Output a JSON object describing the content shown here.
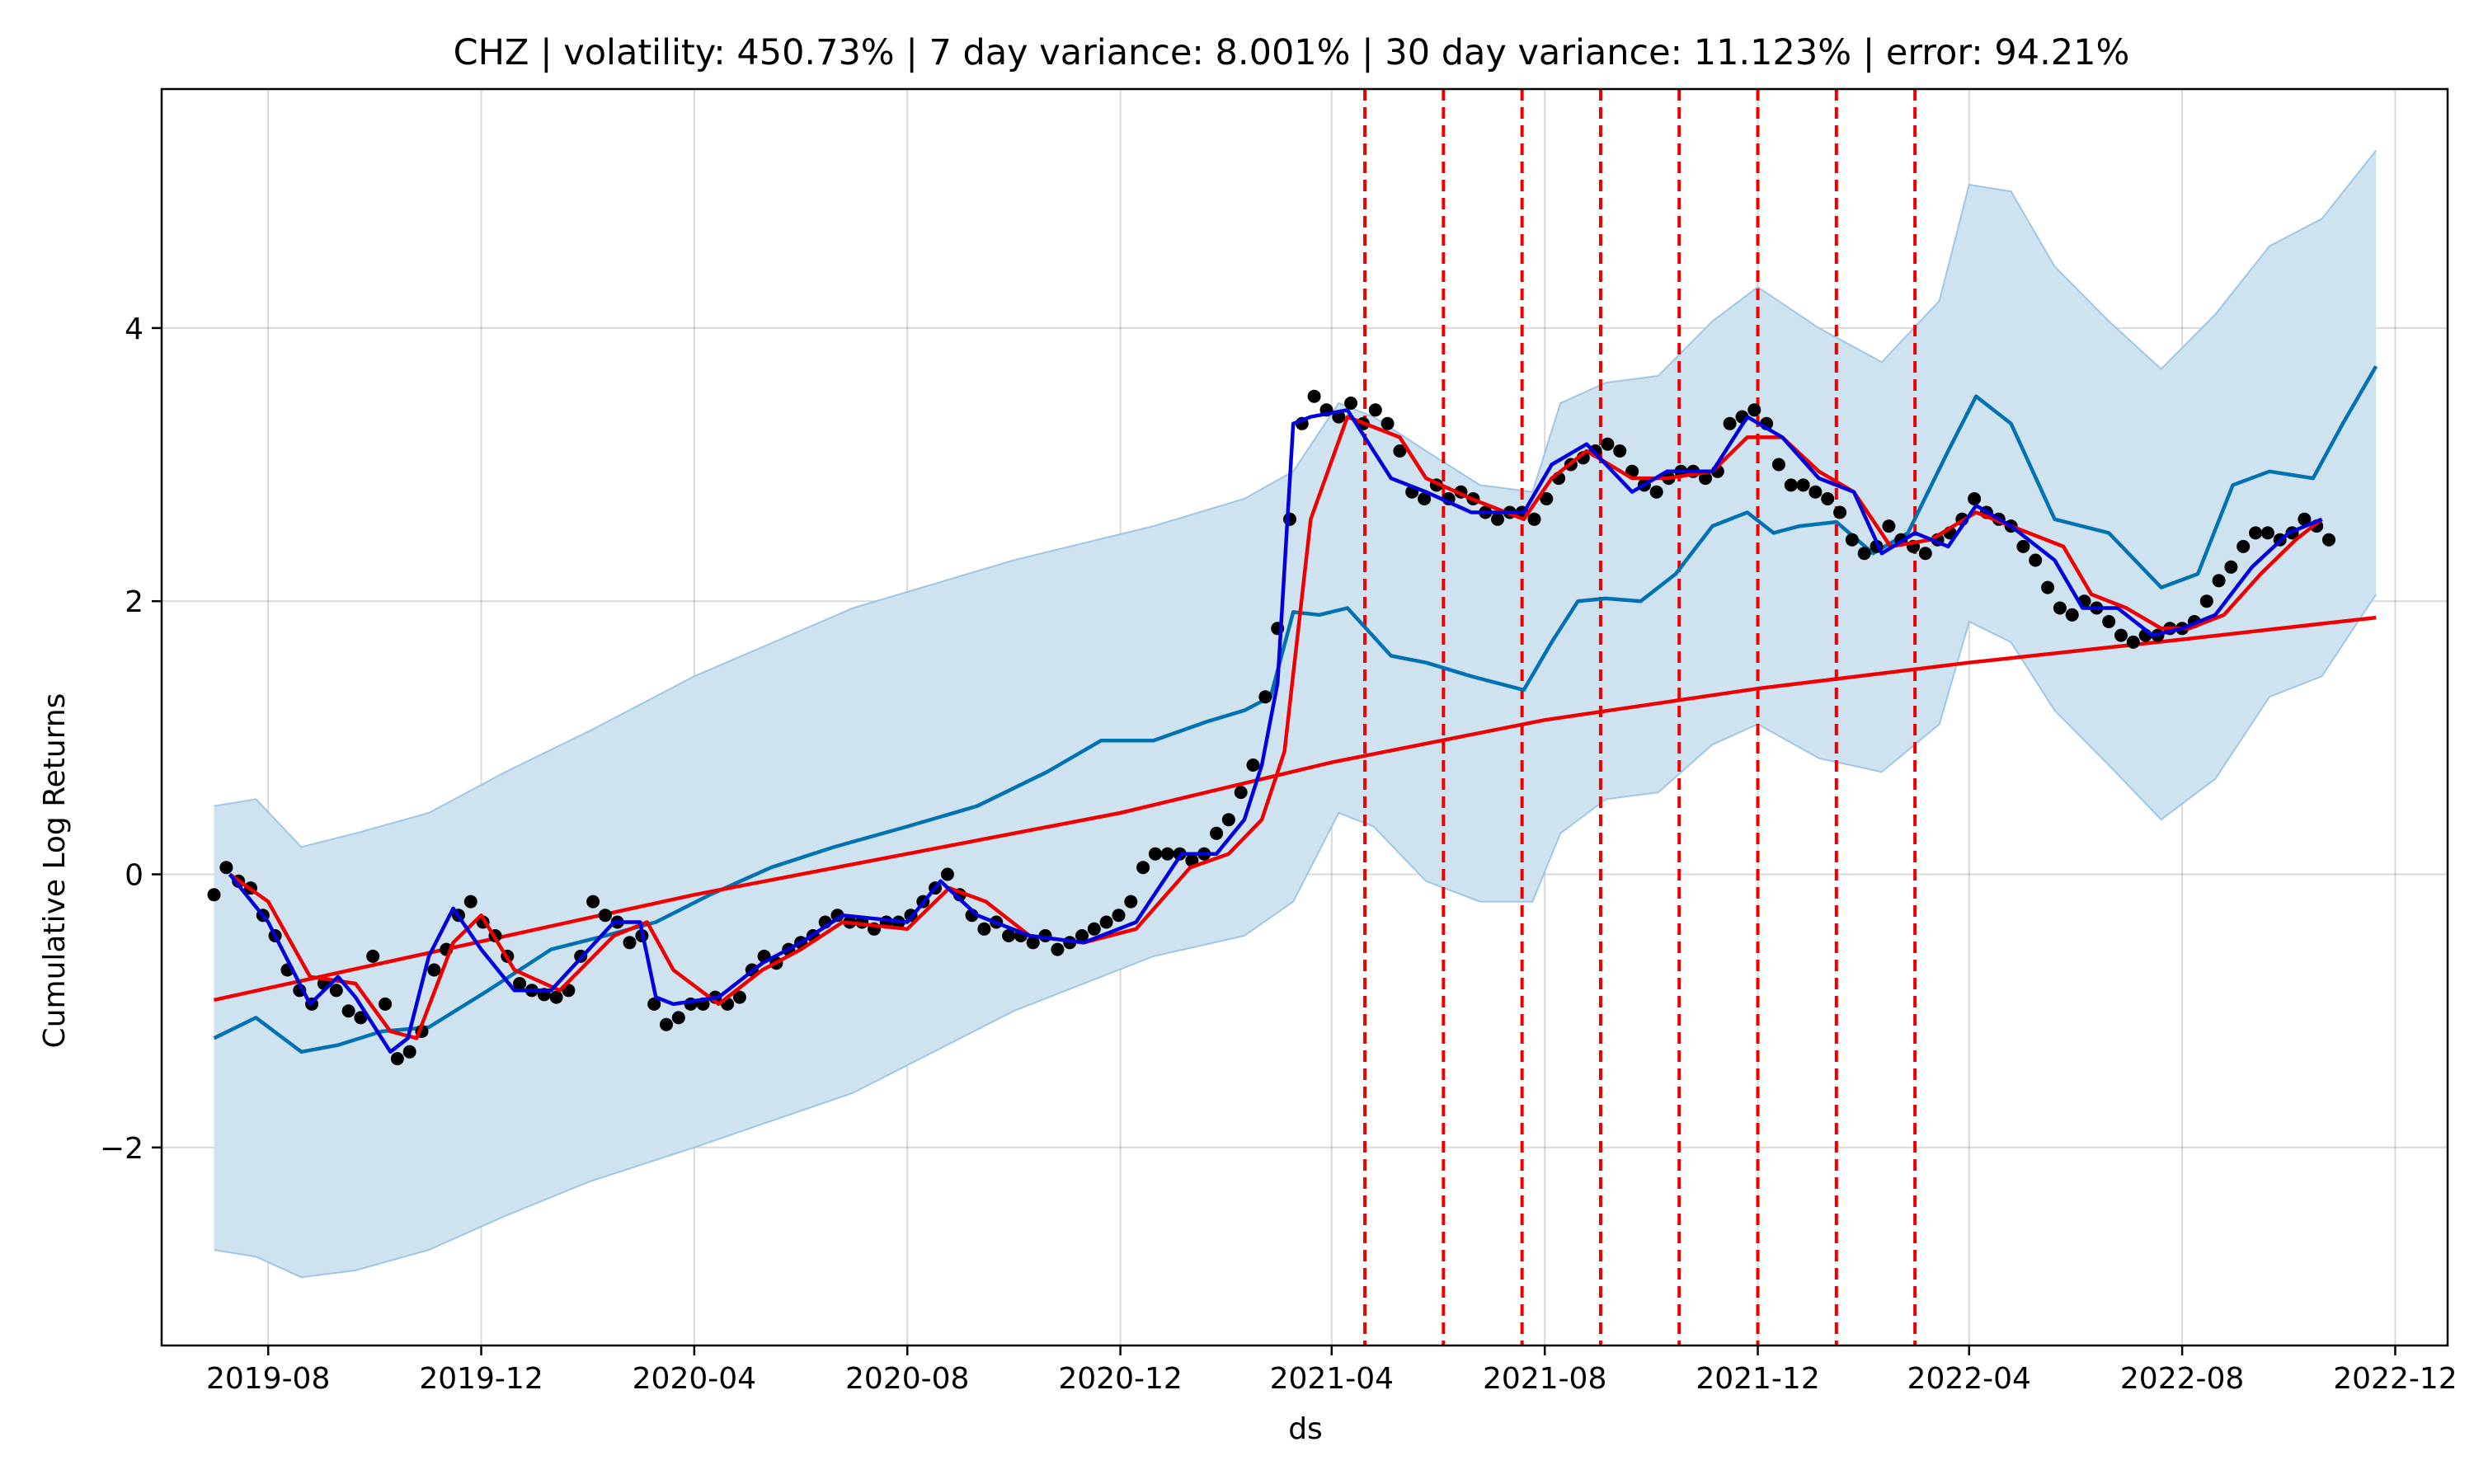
{
  "chart_data": {
    "type": "line",
    "title": "CHZ | volatility: 450.73% | 7 day variance: 8.001% | 30 day variance: 11.123% | error: 94.21%",
    "xlabel": "ds",
    "ylabel": "Cumulative Log Returns",
    "x_range": [
      "2019-06-01",
      "2022-12-31"
    ],
    "ylim": [
      -3.45,
      5.75
    ],
    "x_tick_labels": [
      "2019-08",
      "2019-12",
      "2020-04",
      "2020-08",
      "2020-12",
      "2021-04",
      "2021-08",
      "2021-12",
      "2022-04",
      "2022-08",
      "2022-12"
    ],
    "y_ticks": [
      -2,
      0,
      2,
      4
    ],
    "y_tick_labels": [
      "−2",
      "0",
      "2",
      "4"
    ],
    "grid": true,
    "colors": {
      "actual_points": "#000000",
      "forecast_line": "#0072b2",
      "uncertainty_band": "#cfe2f0",
      "band_edge": "#9fc7e3",
      "trend_line": "#ee0000",
      "fast_ma": "#0000dd",
      "slow_ma": "#ee0000",
      "changepoints": "#ee0000"
    },
    "changepoints": [
      "2021-04-20",
      "2021-06-04",
      "2021-07-19",
      "2021-09-02",
      "2021-10-17",
      "2021-12-01",
      "2022-01-15",
      "2022-03-01"
    ],
    "trend": {
      "x": [
        "2019-07-01",
        "2020-04-01",
        "2020-12-01",
        "2021-04-01",
        "2021-08-01",
        "2021-12-01",
        "2022-04-01",
        "2022-08-01",
        "2022-11-20"
      ],
      "values": [
        -0.92,
        -0.15,
        0.45,
        0.82,
        1.13,
        1.36,
        1.55,
        1.72,
        1.88
      ]
    },
    "forecast": {
      "x": [
        "2019-07-01",
        "2019-07-25",
        "2019-08-20",
        "2019-09-10",
        "2019-10-05",
        "2019-11-01",
        "2019-12-05",
        "2020-01-10",
        "2020-02-10",
        "2020-03-10",
        "2020-04-10",
        "2020-05-15",
        "2020-06-20",
        "2020-08-01",
        "2020-09-10",
        "2020-10-20",
        "2020-11-20",
        "2020-12-20",
        "2021-01-20",
        "2021-02-10",
        "2021-02-25",
        "2021-03-10",
        "2021-03-25",
        "2021-04-10",
        "2021-05-05",
        "2021-05-25",
        "2021-06-20",
        "2021-07-20",
        "2021-08-05",
        "2021-08-20",
        "2021-09-05",
        "2021-09-25",
        "2021-10-15",
        "2021-11-05",
        "2021-11-25",
        "2021-12-10",
        "2021-12-25",
        "2022-01-15",
        "2022-02-05",
        "2022-02-25",
        "2022-03-20",
        "2022-04-05",
        "2022-04-25",
        "2022-05-20",
        "2022-06-20",
        "2022-07-20",
        "2022-08-10",
        "2022-08-30",
        "2022-09-20",
        "2022-10-15",
        "2022-11-01",
        "2022-11-20"
      ],
      "values": [
        -1.2,
        -1.05,
        -1.3,
        -1.25,
        -1.15,
        -1.12,
        -0.85,
        -0.55,
        -0.45,
        -0.35,
        -0.15,
        0.05,
        0.2,
        0.35,
        0.5,
        0.75,
        0.98,
        0.98,
        1.12,
        1.2,
        1.3,
        1.92,
        1.9,
        1.95,
        1.6,
        1.55,
        1.45,
        1.35,
        1.7,
        2.0,
        2.02,
        2.0,
        2.2,
        2.55,
        2.65,
        2.5,
        2.55,
        2.58,
        2.35,
        2.5,
        3.1,
        3.5,
        3.3,
        2.6,
        2.5,
        2.1,
        2.2,
        2.85,
        2.95,
        2.9,
        3.3,
        3.72
      ]
    },
    "band": {
      "x": [
        "2019-07-01",
        "2019-07-25",
        "2019-08-20",
        "2019-09-20",
        "2019-11-01",
        "2019-12-15",
        "2020-02-01",
        "2020-04-01",
        "2020-07-01",
        "2020-10-01",
        "2020-12-20",
        "2021-02-10",
        "2021-03-10",
        "2021-04-05",
        "2021-04-25",
        "2021-05-25",
        "2021-06-25",
        "2021-07-25",
        "2021-08-10",
        "2021-09-05",
        "2021-10-05",
        "2021-11-05",
        "2021-12-01",
        "2022-01-05",
        "2022-02-10",
        "2022-03-15",
        "2022-04-01",
        "2022-04-25",
        "2022-05-20",
        "2022-06-20",
        "2022-07-20",
        "2022-08-20",
        "2022-09-20",
        "2022-10-20",
        "2022-11-20"
      ],
      "upper": [
        0.5,
        0.55,
        0.2,
        0.3,
        0.45,
        0.75,
        1.05,
        1.45,
        1.95,
        2.3,
        2.55,
        2.75,
        2.95,
        3.45,
        3.35,
        3.1,
        2.85,
        2.8,
        3.45,
        3.6,
        3.65,
        4.05,
        4.3,
        4.0,
        3.75,
        4.2,
        5.05,
        5.0,
        4.45,
        4.05,
        3.7,
        4.1,
        4.6,
        4.8,
        5.3
      ],
      "lower": [
        -2.75,
        -2.8,
        -2.95,
        -2.9,
        -2.75,
        -2.5,
        -2.25,
        -2.0,
        -1.6,
        -1.0,
        -0.6,
        -0.45,
        -0.2,
        0.45,
        0.35,
        -0.05,
        -0.2,
        -0.2,
        0.3,
        0.55,
        0.6,
        0.95,
        1.1,
        0.85,
        0.75,
        1.1,
        1.85,
        1.7,
        1.2,
        0.8,
        0.4,
        0.7,
        1.3,
        1.45,
        2.05
      ]
    },
    "fast_ma": {
      "x": [
        "2019-07-10",
        "2019-08-01",
        "2019-08-25",
        "2019-09-10",
        "2019-09-20",
        "2019-10-10",
        "2019-10-20",
        "2019-11-01",
        "2019-11-15",
        "2019-12-01",
        "2019-12-20",
        "2020-01-10",
        "2020-02-15",
        "2020-03-01",
        "2020-03-10",
        "2020-03-20",
        "2020-04-15",
        "2020-05-10",
        "2020-06-01",
        "2020-06-25",
        "2020-08-01",
        "2020-08-20",
        "2020-09-10",
        "2020-10-10",
        "2020-11-10",
        "2020-12-10",
        "2021-01-05",
        "2021-01-25",
        "2021-02-10",
        "2021-02-20",
        "2021-03-01",
        "2021-03-10",
        "2021-03-20",
        "2021-04-10",
        "2021-05-05",
        "2021-05-25",
        "2021-06-20",
        "2021-07-20",
        "2021-08-05",
        "2021-08-25",
        "2021-09-20",
        "2021-10-10",
        "2021-11-05",
        "2021-11-25",
        "2021-12-15",
        "2022-01-05",
        "2022-01-25",
        "2022-02-10",
        "2022-03-01",
        "2022-03-20",
        "2022-04-05",
        "2022-04-25",
        "2022-05-20",
        "2022-06-05",
        "2022-06-25",
        "2022-07-15",
        "2022-08-01",
        "2022-08-20",
        "2022-09-10",
        "2022-10-01",
        "2022-10-20"
      ],
      "values": [
        0.0,
        -0.35,
        -0.95,
        -0.75,
        -0.9,
        -1.3,
        -1.2,
        -0.6,
        -0.25,
        -0.55,
        -0.85,
        -0.85,
        -0.35,
        -0.35,
        -0.9,
        -0.95,
        -0.9,
        -0.65,
        -0.5,
        -0.3,
        -0.35,
        -0.05,
        -0.3,
        -0.45,
        -0.5,
        -0.35,
        0.15,
        0.15,
        0.4,
        0.8,
        1.4,
        3.3,
        3.35,
        3.4,
        2.9,
        2.8,
        2.65,
        2.65,
        3.0,
        3.15,
        2.8,
        2.95,
        2.95,
        3.35,
        3.2,
        2.9,
        2.8,
        2.35,
        2.5,
        2.4,
        2.7,
        2.55,
        2.3,
        1.95,
        1.95,
        1.75,
        1.8,
        1.9,
        2.25,
        2.5,
        2.6
      ]
    },
    "slow_ma": {
      "x": [
        "2019-07-10",
        "2019-08-01",
        "2019-08-25",
        "2019-09-20",
        "2019-10-10",
        "2019-10-25",
        "2019-11-15",
        "2019-12-01",
        "2019-12-20",
        "2020-01-15",
        "2020-02-15",
        "2020-03-05",
        "2020-03-20",
        "2020-04-15",
        "2020-05-10",
        "2020-06-01",
        "2020-06-25",
        "2020-08-01",
        "2020-08-25",
        "2020-09-15",
        "2020-10-10",
        "2020-11-10",
        "2020-12-10",
        "2021-01-10",
        "2021-02-01",
        "2021-02-20",
        "2021-03-05",
        "2021-03-20",
        "2021-04-10",
        "2021-05-10",
        "2021-05-25",
        "2021-06-20",
        "2021-07-20",
        "2021-08-05",
        "2021-08-25",
        "2021-09-20",
        "2021-10-10",
        "2021-11-05",
        "2021-11-25",
        "2021-12-15",
        "2022-01-05",
        "2022-01-25",
        "2022-02-15",
        "2022-03-10",
        "2022-04-05",
        "2022-04-25",
        "2022-05-25",
        "2022-06-10",
        "2022-06-30",
        "2022-07-20",
        "2022-08-05",
        "2022-08-25",
        "2022-09-15",
        "2022-10-05",
        "2022-10-20"
      ],
      "values": [
        0.0,
        -0.2,
        -0.75,
        -0.8,
        -1.15,
        -1.2,
        -0.5,
        -0.3,
        -0.7,
        -0.85,
        -0.45,
        -0.35,
        -0.7,
        -0.95,
        -0.7,
        -0.55,
        -0.35,
        -0.4,
        -0.1,
        -0.2,
        -0.45,
        -0.5,
        -0.4,
        0.05,
        0.15,
        0.4,
        0.9,
        2.6,
        3.35,
        3.2,
        2.9,
        2.75,
        2.6,
        2.9,
        3.1,
        2.9,
        2.9,
        2.95,
        3.2,
        3.2,
        2.95,
        2.8,
        2.4,
        2.45,
        2.65,
        2.55,
        2.4,
        2.05,
        1.95,
        1.8,
        1.8,
        1.9,
        2.2,
        2.45,
        2.6
      ]
    },
    "actual": {
      "x": [
        "2019-07-01",
        "2019-07-08",
        "2019-07-15",
        "2019-07-22",
        "2019-07-29",
        "2019-08-05",
        "2019-08-12",
        "2019-08-19",
        "2019-08-26",
        "2019-09-02",
        "2019-09-09",
        "2019-09-16",
        "2019-09-23",
        "2019-09-30",
        "2019-10-07",
        "2019-10-14",
        "2019-10-21",
        "2019-10-28",
        "2019-11-04",
        "2019-11-11",
        "2019-11-18",
        "2019-11-25",
        "2019-12-02",
        "2019-12-09",
        "2019-12-16",
        "2019-12-23",
        "2019-12-30",
        "2020-01-06",
        "2020-01-13",
        "2020-01-20",
        "2020-01-27",
        "2020-02-03",
        "2020-02-10",
        "2020-02-17",
        "2020-02-24",
        "2020-03-02",
        "2020-03-09",
        "2020-03-16",
        "2020-03-23",
        "2020-03-30",
        "2020-04-06",
        "2020-04-13",
        "2020-04-20",
        "2020-04-27",
        "2020-05-04",
        "2020-05-11",
        "2020-05-18",
        "2020-05-25",
        "2020-06-01",
        "2020-06-08",
        "2020-06-15",
        "2020-06-22",
        "2020-06-29",
        "2020-07-06",
        "2020-07-13",
        "2020-07-20",
        "2020-07-27",
        "2020-08-03",
        "2020-08-10",
        "2020-08-17",
        "2020-08-24",
        "2020-08-31",
        "2020-09-07",
        "2020-09-14",
        "2020-09-21",
        "2020-09-28",
        "2020-10-05",
        "2020-10-12",
        "2020-10-19",
        "2020-10-26",
        "2020-11-02",
        "2020-11-09",
        "2020-11-16",
        "2020-11-23",
        "2020-11-30",
        "2020-12-07",
        "2020-12-14",
        "2020-12-21",
        "2020-12-28",
        "2021-01-04",
        "2021-01-11",
        "2021-01-18",
        "2021-01-25",
        "2021-02-01",
        "2021-02-08",
        "2021-02-15",
        "2021-02-22",
        "2021-03-01",
        "2021-03-08",
        "2021-03-15",
        "2021-03-22",
        "2021-03-29",
        "2021-04-05",
        "2021-04-12",
        "2021-04-19",
        "2021-04-26",
        "2021-05-03",
        "2021-05-10",
        "2021-05-17",
        "2021-05-24",
        "2021-05-31",
        "2021-06-07",
        "2021-06-14",
        "2021-06-21",
        "2021-06-28",
        "2021-07-05",
        "2021-07-12",
        "2021-07-19",
        "2021-07-26",
        "2021-08-02",
        "2021-08-09",
        "2021-08-16",
        "2021-08-23",
        "2021-08-30",
        "2021-09-06",
        "2021-09-13",
        "2021-09-20",
        "2021-09-27",
        "2021-10-04",
        "2021-10-11",
        "2021-10-18",
        "2021-10-25",
        "2021-11-01",
        "2021-11-08",
        "2021-11-15",
        "2021-11-22",
        "2021-11-29",
        "2021-12-06",
        "2021-12-13",
        "2021-12-20",
        "2021-12-27",
        "2022-01-03",
        "2022-01-10",
        "2022-01-17",
        "2022-01-24",
        "2022-01-31",
        "2022-02-07",
        "2022-02-14",
        "2022-02-21",
        "2022-02-28",
        "2022-03-07",
        "2022-03-14",
        "2022-03-21",
        "2022-03-28",
        "2022-04-04",
        "2022-04-11",
        "2022-04-18",
        "2022-04-25",
        "2022-05-02",
        "2022-05-09",
        "2022-05-16",
        "2022-05-23",
        "2022-05-30",
        "2022-06-06",
        "2022-06-13",
        "2022-06-20",
        "2022-06-27",
        "2022-07-04",
        "2022-07-11",
        "2022-07-18",
        "2022-07-25",
        "2022-08-01",
        "2022-08-08",
        "2022-08-15",
        "2022-08-22",
        "2022-08-29",
        "2022-09-05",
        "2022-09-12",
        "2022-09-19",
        "2022-09-26",
        "2022-10-03",
        "2022-10-10",
        "2022-10-17",
        "2022-10-24"
      ],
      "values": [
        -0.15,
        0.05,
        -0.05,
        -0.1,
        -0.3,
        -0.45,
        -0.7,
        -0.85,
        -0.95,
        -0.8,
        -0.85,
        -1.0,
        -1.05,
        -0.6,
        -0.95,
        -1.35,
        -1.3,
        -1.15,
        -0.7,
        -0.55,
        -0.3,
        -0.2,
        -0.35,
        -0.45,
        -0.6,
        -0.8,
        -0.85,
        -0.88,
        -0.9,
        -0.85,
        -0.6,
        -0.2,
        -0.3,
        -0.35,
        -0.5,
        -0.45,
        -0.95,
        -1.1,
        -1.05,
        -0.95,
        -0.95,
        -0.9,
        -0.95,
        -0.9,
        -0.7,
        -0.6,
        -0.65,
        -0.55,
        -0.5,
        -0.45,
        -0.35,
        -0.3,
        -0.35,
        -0.35,
        -0.4,
        -0.35,
        -0.35,
        -0.3,
        -0.2,
        -0.1,
        0.0,
        -0.15,
        -0.3,
        -0.4,
        -0.35,
        -0.45,
        -0.45,
        -0.5,
        -0.45,
        -0.55,
        -0.5,
        -0.45,
        -0.4,
        -0.35,
        -0.3,
        -0.2,
        0.05,
        0.15,
        0.15,
        0.15,
        0.1,
        0.15,
        0.3,
        0.4,
        0.6,
        0.8,
        1.3,
        1.8,
        2.6,
        3.3,
        3.5,
        3.4,
        3.35,
        3.45,
        3.3,
        3.4,
        3.3,
        3.1,
        2.8,
        2.75,
        2.85,
        2.75,
        2.8,
        2.75,
        2.65,
        2.6,
        2.65,
        2.65,
        2.6,
        2.75,
        2.9,
        3.0,
        3.05,
        3.1,
        3.15,
        3.1,
        2.95,
        2.85,
        2.8,
        2.9,
        2.95,
        2.95,
        2.9,
        2.95,
        3.3,
        3.35,
        3.4,
        3.3,
        3.0,
        2.85,
        2.85,
        2.8,
        2.75,
        2.65,
        2.45,
        2.35,
        2.4,
        2.55,
        2.45,
        2.4,
        2.35,
        2.45,
        2.5,
        2.6,
        2.75,
        2.65,
        2.6,
        2.55,
        2.4,
        2.3,
        2.1,
        1.95,
        1.9,
        2.0,
        1.95,
        1.85,
        1.75,
        1.7,
        1.75,
        1.75,
        1.8,
        1.8,
        1.85,
        2.0,
        2.15,
        2.25,
        2.4,
        2.5,
        2.5,
        2.45,
        2.5,
        2.6,
        2.55,
        2.45
      ]
    }
  }
}
